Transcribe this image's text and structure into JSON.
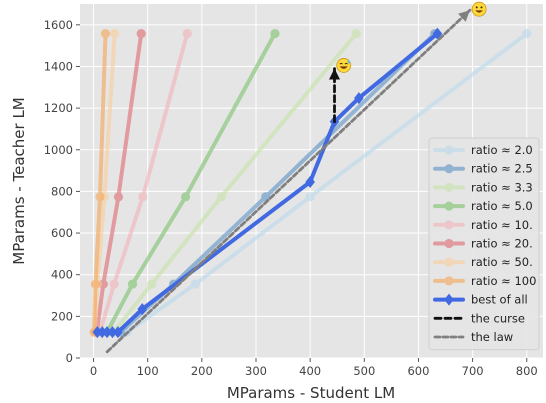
{
  "chart_data": {
    "type": "line",
    "xlabel": "MParams - Student LM",
    "ylabel": "MParams - Teacher LM",
    "xlim": [
      -25,
      830
    ],
    "ylim": [
      0,
      1700
    ],
    "xticks": [
      0,
      100,
      200,
      300,
      400,
      500,
      600,
      700,
      800
    ],
    "yticks": [
      0,
      200,
      400,
      600,
      800,
      1000,
      1200,
      1400,
      1600
    ],
    "grid": true,
    "legend_position": "lower-right",
    "series": [
      {
        "name": "ratio ≈ 2.0",
        "color": "#b9d9ec",
        "marker": "circle",
        "points": [
          [
            62,
            124
          ],
          [
            188,
            355
          ],
          [
            400,
            774
          ],
          [
            800,
            1558
          ]
        ]
      },
      {
        "name": "ratio ≈ 2.5",
        "color": "#5b93c4",
        "marker": "circle",
        "points": [
          [
            50,
            124
          ],
          [
            148,
            355
          ],
          [
            318,
            774
          ],
          [
            630,
            1558
          ]
        ]
      },
      {
        "name": "ratio ≈ 3.3",
        "color": "#c7e3a6",
        "marker": "circle",
        "points": [
          [
            37,
            124
          ],
          [
            107,
            355
          ],
          [
            236,
            774
          ],
          [
            485,
            1558
          ]
        ]
      },
      {
        "name": "ratio ≈ 5.0",
        "color": "#7cc16b",
        "marker": "circle",
        "points": [
          [
            25,
            124
          ],
          [
            72,
            355
          ],
          [
            170,
            774
          ],
          [
            335,
            1558
          ]
        ]
      },
      {
        "name": "ratio ≈ 10.",
        "color": "#f3b3b8",
        "marker": "circle",
        "points": [
          [
            12,
            124
          ],
          [
            38,
            355
          ],
          [
            91,
            774
          ],
          [
            173,
            1558
          ]
        ]
      },
      {
        "name": "ratio ≈ 20.",
        "color": "#e06b72",
        "marker": "circle",
        "points": [
          [
            6,
            124
          ],
          [
            18,
            355
          ],
          [
            46,
            774
          ],
          [
            88,
            1558
          ]
        ]
      },
      {
        "name": "ratio ≈ 50.",
        "color": "#f9cf9b",
        "marker": "circle",
        "points": [
          [
            2.5,
            124
          ],
          [
            7,
            355
          ],
          [
            20,
            774
          ],
          [
            39,
            1558
          ]
        ]
      },
      {
        "name": "ratio ≈ 100",
        "color": "#f5a556",
        "marker": "circle",
        "points": [
          [
            1.2,
            124
          ],
          [
            3.5,
            355
          ],
          [
            12,
            774
          ],
          [
            22,
            1558
          ]
        ]
      },
      {
        "name": "best of all",
        "color": "#4169e1",
        "marker": "diamond",
        "points": [
          [
            7,
            124
          ],
          [
            16,
            124
          ],
          [
            25,
            124
          ],
          [
            35,
            124
          ],
          [
            45,
            124
          ],
          [
            90,
            235
          ],
          [
            400,
            845
          ],
          [
            445,
            1135
          ],
          [
            490,
            1248
          ],
          [
            635,
            1558
          ]
        ]
      },
      {
        "name": "the curse",
        "color": "#111111",
        "marker": "none",
        "dash": "dashed",
        "points": [
          [
            445,
            1135
          ],
          [
            445,
            1390
          ]
        ]
      },
      {
        "name": "the law",
        "color": "#7f7f7f",
        "marker": "none",
        "dash": "dashed",
        "points": [
          [
            25,
            30
          ],
          [
            695,
            1670
          ]
        ]
      }
    ],
    "annotations": [
      {
        "type": "emoji",
        "name": "sweat-smile-emoji",
        "x": 462,
        "y": 1405,
        "glyph": "sweat"
      },
      {
        "type": "emoji",
        "name": "smile-emoji",
        "x": 712,
        "y": 1675,
        "glyph": "smile"
      }
    ]
  }
}
